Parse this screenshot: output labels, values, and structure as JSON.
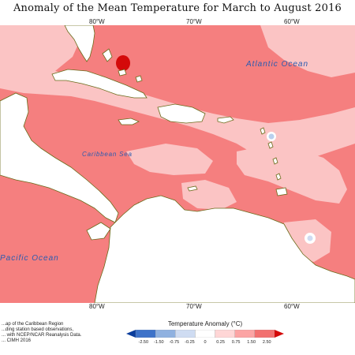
{
  "title": "Anomaly of the Mean Temperature for March to August 2016",
  "longitude_labels": [
    {
      "text": "80°W",
      "lon": -80
    },
    {
      "text": "70°W",
      "lon": -70
    },
    {
      "text": "60°W",
      "lon": -60
    }
  ],
  "ocean_labels": {
    "atlantic": "Atlantic Ocean",
    "caribbean": "Caribbean Sea",
    "pacific": "Pacific Ocean"
  },
  "footer_lines": [
    "...ap of the Caribbean Region",
    "...ding station based observations,",
    "... with NCEP/NCAR Reanalysis Data.",
    "... CIMH 2016"
  ],
  "legend": {
    "title": "Temperature Anomaly (°C)",
    "ticks": [
      "-2.50",
      "-1.50",
      "-0.75",
      "-0.25",
      "0",
      "0.25",
      "0.75",
      "1.50",
      "2.50"
    ],
    "colors": [
      "#0a3d9c",
      "#3d72c9",
      "#8fb1e0",
      "#cfdcf2",
      "#ffffff",
      "#ffd6d6",
      "#fca4a4",
      "#f2706f",
      "#d40a0a"
    ]
  },
  "colors": {
    "land": "#ffffff",
    "coast": "#6b6b1a",
    "anomaly_low": "#fbc4c4",
    "anomaly_mid": "#f57f7f",
    "anomaly_high": "#d40a0a",
    "anomaly_cool": "#b9d0ee"
  }
}
